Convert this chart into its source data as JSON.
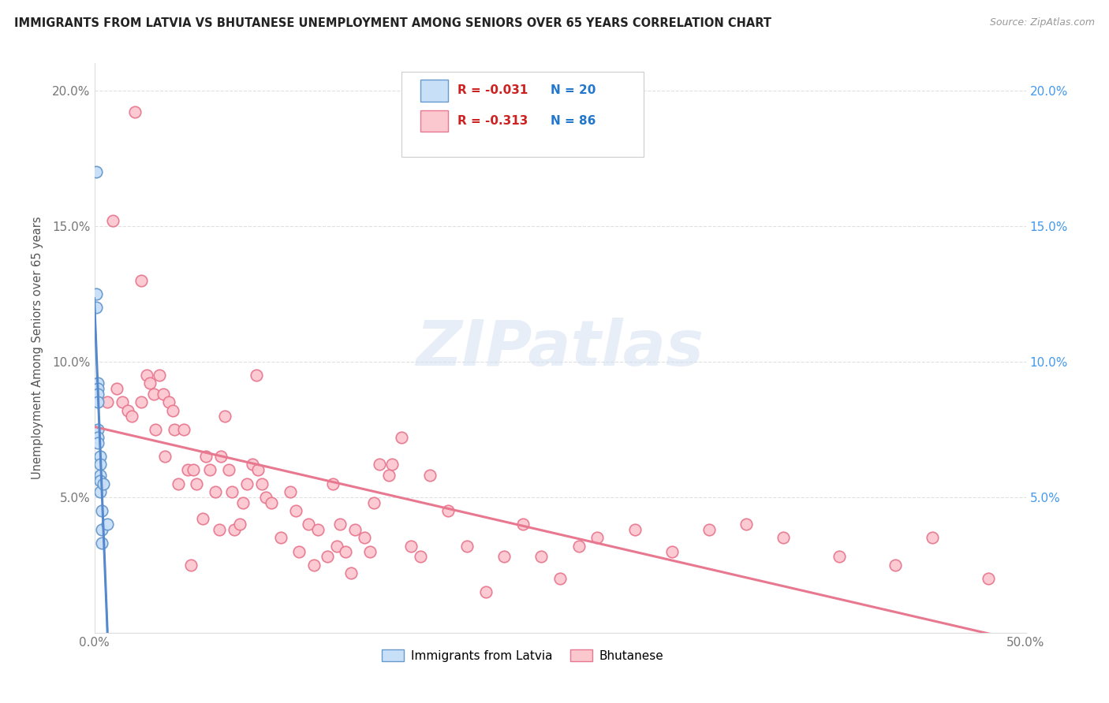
{
  "title": "IMMIGRANTS FROM LATVIA VS BHUTANESE UNEMPLOYMENT AMONG SENIORS OVER 65 YEARS CORRELATION CHART",
  "source": "Source: ZipAtlas.com",
  "ylabel": "Unemployment Among Seniors over 65 years",
  "xlim": [
    0.0,
    0.5
  ],
  "ylim": [
    0.0,
    0.21
  ],
  "ytick_vals": [
    0.0,
    0.05,
    0.1,
    0.15,
    0.2
  ],
  "ytick_labels": [
    "",
    "5.0%",
    "10.0%",
    "15.0%",
    "20.0%"
  ],
  "xtick_vals": [
    0.0,
    0.5
  ],
  "xtick_labels": [
    "0.0%",
    "50.0%"
  ],
  "legend_r1": "-0.031",
  "legend_n1": "20",
  "legend_r2": "-0.313",
  "legend_n2": "86",
  "color_latvia_fill": "#C8DFF8",
  "color_latvia_edge": "#6699CC",
  "color_bhutanese_fill": "#FCC8D0",
  "color_bhutanese_edge": "#E87890",
  "color_latvia_line": "#5588CC",
  "color_bhutanese_line": "#E87890",
  "color_dashed": "#99BBDD",
  "watermark_color": "#D8E8F0",
  "latvia_x": [
    0.001,
    0.001,
    0.001,
    0.002,
    0.002,
    0.002,
    0.002,
    0.002,
    0.002,
    0.002,
    0.003,
    0.003,
    0.003,
    0.003,
    0.003,
    0.004,
    0.004,
    0.004,
    0.005,
    0.007
  ],
  "latvia_y": [
    0.17,
    0.125,
    0.12,
    0.092,
    0.09,
    0.088,
    0.085,
    0.075,
    0.072,
    0.07,
    0.065,
    0.062,
    0.058,
    0.056,
    0.052,
    0.045,
    0.038,
    0.033,
    0.055,
    0.04
  ],
  "bhutanese_x": [
    0.007,
    0.01,
    0.012,
    0.015,
    0.018,
    0.02,
    0.022,
    0.025,
    0.025,
    0.028,
    0.03,
    0.032,
    0.033,
    0.035,
    0.037,
    0.038,
    0.04,
    0.042,
    0.043,
    0.045,
    0.048,
    0.05,
    0.052,
    0.053,
    0.055,
    0.058,
    0.06,
    0.062,
    0.065,
    0.067,
    0.068,
    0.07,
    0.072,
    0.074,
    0.075,
    0.078,
    0.08,
    0.082,
    0.085,
    0.087,
    0.088,
    0.09,
    0.092,
    0.095,
    0.1,
    0.105,
    0.108,
    0.11,
    0.115,
    0.118,
    0.12,
    0.125,
    0.128,
    0.13,
    0.132,
    0.135,
    0.138,
    0.14,
    0.145,
    0.148,
    0.15,
    0.153,
    0.158,
    0.16,
    0.165,
    0.17,
    0.175,
    0.18,
    0.19,
    0.2,
    0.21,
    0.22,
    0.23,
    0.24,
    0.25,
    0.26,
    0.27,
    0.29,
    0.31,
    0.33,
    0.35,
    0.37,
    0.4,
    0.43,
    0.45,
    0.48
  ],
  "bhutanese_y": [
    0.085,
    0.152,
    0.09,
    0.085,
    0.082,
    0.08,
    0.192,
    0.13,
    0.085,
    0.095,
    0.092,
    0.088,
    0.075,
    0.095,
    0.088,
    0.065,
    0.085,
    0.082,
    0.075,
    0.055,
    0.075,
    0.06,
    0.025,
    0.06,
    0.055,
    0.042,
    0.065,
    0.06,
    0.052,
    0.038,
    0.065,
    0.08,
    0.06,
    0.052,
    0.038,
    0.04,
    0.048,
    0.055,
    0.062,
    0.095,
    0.06,
    0.055,
    0.05,
    0.048,
    0.035,
    0.052,
    0.045,
    0.03,
    0.04,
    0.025,
    0.038,
    0.028,
    0.055,
    0.032,
    0.04,
    0.03,
    0.022,
    0.038,
    0.035,
    0.03,
    0.048,
    0.062,
    0.058,
    0.062,
    0.072,
    0.032,
    0.028,
    0.058,
    0.045,
    0.032,
    0.015,
    0.028,
    0.04,
    0.028,
    0.02,
    0.032,
    0.035,
    0.038,
    0.03,
    0.038,
    0.04,
    0.035,
    0.028,
    0.025,
    0.035,
    0.02
  ]
}
